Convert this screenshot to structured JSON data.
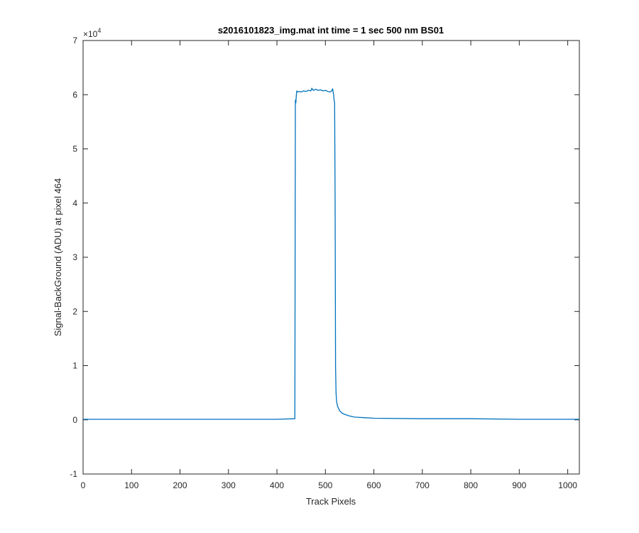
{
  "chart_data": {
    "type": "line",
    "title": "s2016101823_img.mat int time = 1 sec  500 nm BS01",
    "xlabel": "Track Pixels",
    "ylabel": "Signal-BackGround (ADU) at pixel 464",
    "xlim": [
      0,
      1024
    ],
    "ylim": [
      -1,
      7
    ],
    "y_scale_exponent_label": "×10",
    "y_scale_exponent": "4",
    "x_ticks": [
      "0",
      "100",
      "200",
      "300",
      "400",
      "500",
      "600",
      "700",
      "800",
      "900",
      "1000"
    ],
    "y_ticks": [
      "-1",
      "0",
      "1",
      "2",
      "3",
      "4",
      "5",
      "6",
      "7"
    ],
    "grid": false,
    "series": [
      {
        "color": "#0072BD",
        "x": [
          0,
          100,
          200,
          300,
          400,
          437,
          438,
          439,
          440,
          441,
          443,
          446,
          450,
          455,
          460,
          465,
          470,
          472,
          475,
          480,
          485,
          490,
          495,
          500,
          505,
          510,
          513,
          515,
          516,
          517,
          518,
          519,
          520,
          521,
          522,
          523,
          525,
          530,
          535,
          540,
          550,
          560,
          580,
          600,
          700,
          800,
          900,
          1000,
          1024
        ],
        "y": [
          0.01,
          0.01,
          0.01,
          0.01,
          0.01,
          0.02,
          5.9,
          5.85,
          6.0,
          6.07,
          6.05,
          6.06,
          6.05,
          6.07,
          6.06,
          6.08,
          6.07,
          6.12,
          6.08,
          6.1,
          6.08,
          6.09,
          6.07,
          6.08,
          6.06,
          6.05,
          6.07,
          6.11,
          6.05,
          6.0,
          5.9,
          5.85,
          4.0,
          1.0,
          0.5,
          0.35,
          0.25,
          0.16,
          0.12,
          0.1,
          0.07,
          0.05,
          0.04,
          0.03,
          0.02,
          0.02,
          0.01,
          0.01,
          0.01
        ]
      }
    ]
  }
}
